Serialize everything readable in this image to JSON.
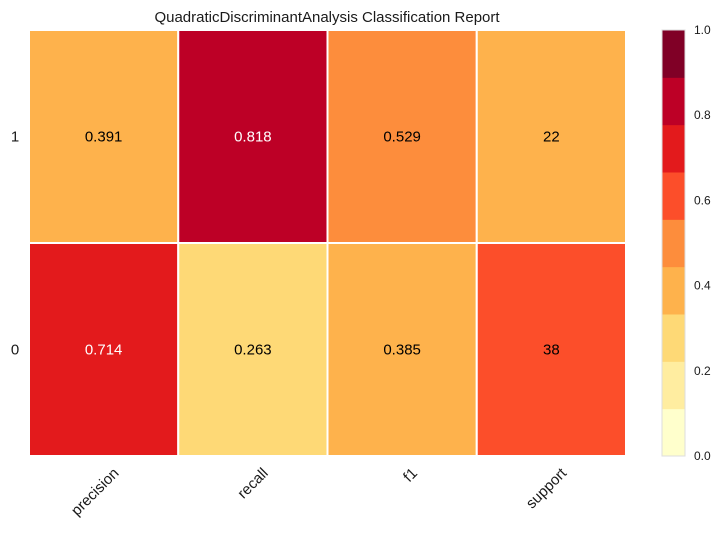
{
  "chart_data": {
    "type": "heatmap",
    "title": "QuadraticDiscriminantAnalysis Classification Report",
    "columns": [
      "precision",
      "recall",
      "f1",
      "support"
    ],
    "rows": [
      "1",
      "0"
    ],
    "cells": [
      [
        {
          "value": 0.391,
          "label": "0.391",
          "color": "#feb24c",
          "text_color": "#000000"
        },
        {
          "value": 0.818,
          "label": "0.818",
          "color": "#bd0026",
          "text_color": "#ffffff"
        },
        {
          "value": 0.529,
          "label": "0.529",
          "color": "#fd8d3c",
          "text_color": "#000000"
        },
        {
          "value": 22,
          "label": "22",
          "color": "#feb24c",
          "text_color": "#000000"
        }
      ],
      [
        {
          "value": 0.714,
          "label": "0.714",
          "color": "#e31a1c",
          "text_color": "#ffffff"
        },
        {
          "value": 0.263,
          "label": "0.263",
          "color": "#fed976",
          "text_color": "#000000"
        },
        {
          "value": 0.385,
          "label": "0.385",
          "color": "#feb24c",
          "text_color": "#000000"
        },
        {
          "value": 38,
          "label": "38",
          "color": "#fc4e2a",
          "text_color": "#000000"
        }
      ]
    ],
    "colorbar": {
      "range": [
        0.0,
        1.0
      ],
      "ticks": [
        "0.0",
        "0.2",
        "0.4",
        "0.6",
        "0.8",
        "1.0"
      ],
      "colors": [
        "#ffffcc",
        "#ffeda0",
        "#fed976",
        "#feb24c",
        "#fd8d3c",
        "#fc4e2a",
        "#e31a1c",
        "#bd0026",
        "#800026"
      ]
    },
    "grid": true
  }
}
